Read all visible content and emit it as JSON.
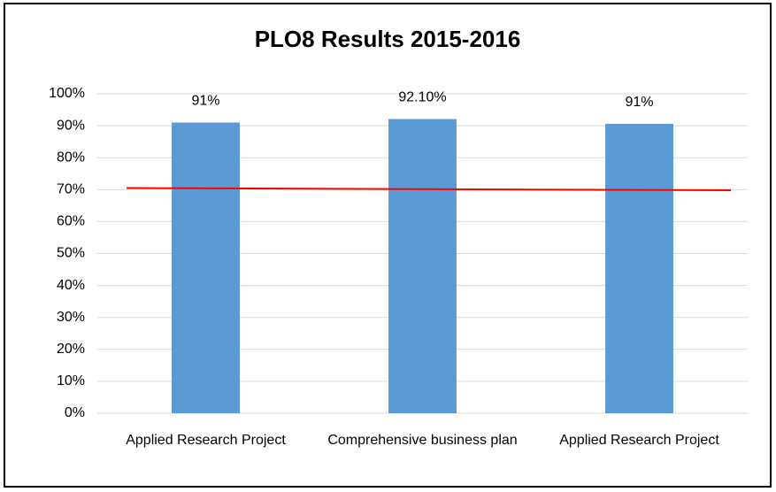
{
  "chart_data": {
    "type": "bar",
    "title": "PLO8 Results 2015-2016",
    "categories": [
      "Applied Research Project",
      "Comprehensive business plan",
      "Applied Research Project"
    ],
    "values": [
      91,
      92.1,
      90.6
    ],
    "value_labels": [
      "91%",
      "92.10%",
      "91%"
    ],
    "color": "#5b9bd5",
    "ylim": [
      0,
      100
    ],
    "yticks": [
      {
        "value": 0,
        "label": "0%"
      },
      {
        "value": 10,
        "label": "10%"
      },
      {
        "value": 20,
        "label": "20%"
      },
      {
        "value": 30,
        "label": "30%"
      },
      {
        "value": 40,
        "label": "40%"
      },
      {
        "value": 50,
        "label": "50%"
      },
      {
        "value": 60,
        "label": "60%"
      },
      {
        "value": 70,
        "label": "70%"
      },
      {
        "value": 80,
        "label": "80%"
      },
      {
        "value": 90,
        "label": "90%"
      },
      {
        "value": 100,
        "label": "100%"
      }
    ],
    "grid": true,
    "reference_line": {
      "values": [
        70.5,
        69.8
      ],
      "color": "#ff0000"
    }
  }
}
